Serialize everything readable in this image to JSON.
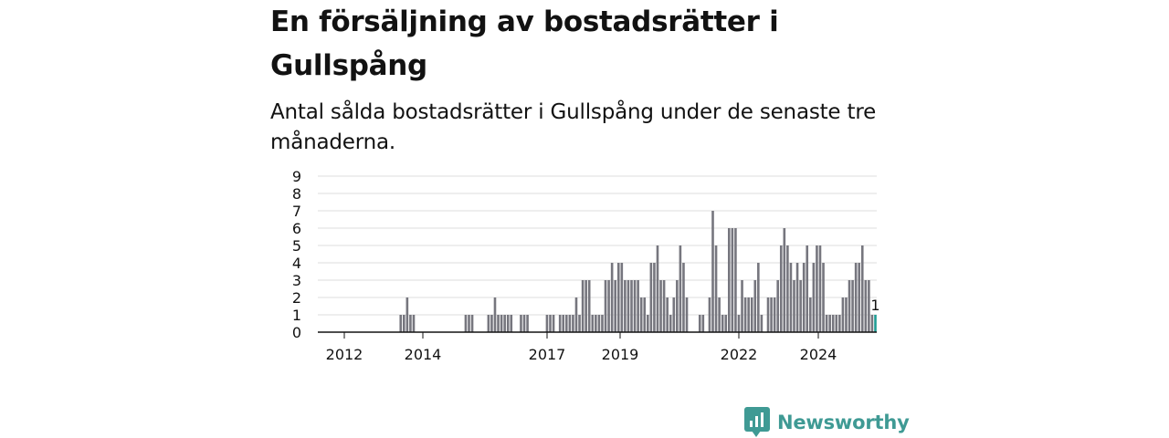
{
  "title": "En försäljning av bostadsrätter i Gullspång",
  "subtitle": "Antal sålda bostadsrätter i Gullspång under de senaste tre månaderna.",
  "brand": {
    "name": "Newsworthy",
    "color": "#3f9a94",
    "icon": "bar-chart-badge-icon"
  },
  "colors": {
    "bar": "#76767e",
    "highlight": "#1f9c94",
    "grid": "#dddddd",
    "axis": "#121212"
  },
  "chart_data": {
    "type": "bar",
    "title": "",
    "xlabel": "",
    "ylabel": "",
    "ylim": [
      0,
      9
    ],
    "yticks": [
      "0",
      "1",
      "2",
      "3",
      "4",
      "5",
      "6",
      "7",
      "8",
      "9"
    ],
    "xticks": [
      "2012",
      "2014",
      "2017",
      "2019",
      "2022",
      "2024"
    ],
    "x_start": "2011-10",
    "x_unit": "month",
    "grid": true,
    "legend": "none",
    "values": [
      0,
      0,
      0,
      0,
      0,
      0,
      0,
      0,
      0,
      0,
      0,
      0,
      0,
      0,
      0,
      0,
      0,
      0,
      0,
      0,
      0,
      0,
      0,
      0,
      1,
      1,
      2,
      1,
      1,
      0,
      0,
      0,
      0,
      0,
      0,
      0,
      0,
      0,
      0,
      0,
      0,
      0,
      0,
      0,
      1,
      1,
      1,
      0,
      0,
      0,
      0,
      1,
      1,
      2,
      1,
      1,
      1,
      1,
      1,
      0,
      0,
      1,
      1,
      1,
      0,
      0,
      0,
      0,
      0,
      1,
      1,
      1,
      0,
      1,
      1,
      1,
      1,
      1,
      2,
      1,
      3,
      3,
      3,
      1,
      1,
      1,
      1,
      3,
      3,
      4,
      3,
      4,
      4,
      3,
      3,
      3,
      3,
      3,
      2,
      2,
      1,
      4,
      4,
      5,
      3,
      3,
      2,
      1,
      2,
      3,
      5,
      4,
      2,
      0,
      0,
      0,
      1,
      1,
      0,
      2,
      7,
      5,
      2,
      1,
      1,
      6,
      6,
      6,
      1,
      3,
      2,
      2,
      2,
      3,
      4,
      1,
      0,
      2,
      2,
      2,
      3,
      5,
      6,
      5,
      4,
      3,
      4,
      3,
      4,
      5,
      2,
      4,
      5,
      5,
      4,
      1,
      1,
      1,
      1,
      1,
      2,
      2,
      3,
      3,
      4,
      4,
      5,
      3,
      3,
      1,
      1
    ],
    "highlight": {
      "value": 1,
      "label": "1"
    }
  }
}
